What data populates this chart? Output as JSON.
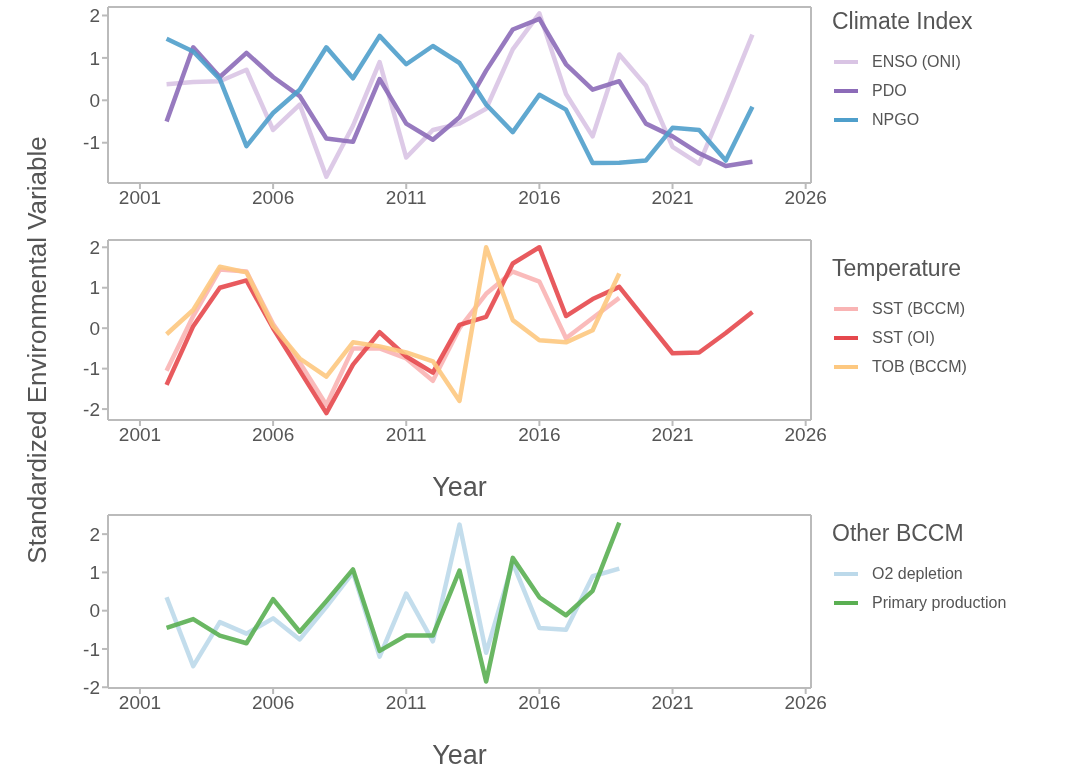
{
  "chart_data": [
    {
      "type": "line",
      "x": [
        2002,
        2003,
        2004,
        2005,
        2006,
        2007,
        2008,
        2009,
        2010,
        2011,
        2012,
        2013,
        2014,
        2015,
        2016,
        2017,
        2018,
        2019,
        2020,
        2021,
        2022,
        2023,
        2024
      ],
      "xlim": [
        1999.8,
        2026.2
      ],
      "xticks": [
        2001,
        2006,
        2011,
        2016,
        2021,
        2026
      ],
      "ylim": [
        -1.95,
        2.2
      ],
      "yticks": [
        -1,
        0,
        1,
        2
      ],
      "legend": "right",
      "legend_title": "Climate Index",
      "line_style": "solid",
      "marker": "none",
      "series": [
        {
          "name": "ENSO (ONI)",
          "color": "#d9c4e4",
          "values": [
            0.38,
            0.43,
            0.45,
            0.72,
            -0.7,
            -0.1,
            -1.8,
            -0.6,
            0.9,
            -1.35,
            -0.7,
            -0.55,
            -0.2,
            1.2,
            2.05,
            0.15,
            -0.85,
            1.08,
            0.35,
            -1.1,
            -1.5,
            0.0,
            1.55
          ]
        },
        {
          "name": "PDO",
          "color": "#8c6bb8",
          "values": [
            -0.5,
            1.25,
            0.55,
            1.12,
            0.55,
            0.1,
            -0.9,
            -0.98,
            0.5,
            -0.55,
            -0.93,
            -0.4,
            0.7,
            1.67,
            1.92,
            0.85,
            0.25,
            0.45,
            -0.55,
            -0.85,
            -1.25,
            -1.55,
            -1.45
          ]
        },
        {
          "name": "NPGO",
          "color": "#4f9fcb",
          "values": [
            1.45,
            1.15,
            0.5,
            -1.08,
            -0.3,
            0.25,
            1.25,
            0.52,
            1.52,
            0.85,
            1.28,
            0.88,
            -0.1,
            -0.75,
            0.13,
            -0.22,
            -1.48,
            -1.47,
            -1.42,
            -0.65,
            -0.7,
            -1.42,
            -0.15
          ]
        }
      ]
    },
    {
      "type": "line",
      "x": [
        2002,
        2003,
        2004,
        2005,
        2006,
        2007,
        2008,
        2009,
        2010,
        2011,
        2012,
        2013,
        2014,
        2015,
        2016,
        2017,
        2018,
        2019,
        2020,
        2021,
        2022,
        2023,
        2024
      ],
      "xlim": [
        1999.8,
        2026.2
      ],
      "xticks": [
        2001,
        2006,
        2011,
        2016,
        2021,
        2026
      ],
      "ylim": [
        -2.27,
        2.18
      ],
      "yticks": [
        -2,
        -1,
        0,
        1,
        2
      ],
      "xlabel": "Year",
      "ylabel": "Standardized Environmental Variable",
      "legend": "right",
      "legend_title": "Temperature",
      "line_style": "solid",
      "marker": "none",
      "series": [
        {
          "name": "SST (BCCM)",
          "color": "#f9b4b4",
          "x": [
            2002,
            2003,
            2004,
            2005,
            2006,
            2007,
            2008,
            2009,
            2010,
            2011,
            2012,
            2013,
            2014,
            2015,
            2016,
            2017,
            2018,
            2019
          ],
          "values": [
            -1.05,
            0.3,
            1.45,
            1.4,
            0.1,
            -0.85,
            -1.9,
            -0.5,
            -0.5,
            -0.75,
            -1.3,
            0.0,
            0.85,
            1.4,
            1.15,
            -0.25,
            0.25,
            0.75
          ]
        },
        {
          "name": "SST (OI)",
          "color": "#e5484d",
          "values": [
            -1.4,
            0.05,
            1.0,
            1.18,
            0.0,
            -1.05,
            -2.1,
            -0.9,
            -0.1,
            -0.7,
            -1.1,
            0.08,
            0.28,
            1.6,
            2.0,
            0.3,
            0.72,
            1.02,
            0.2,
            -0.62,
            -0.6,
            -0.12,
            0.4
          ]
        },
        {
          "name": "TOB (BCCM)",
          "color": "#fdc880",
          "x": [
            2002,
            2003,
            2004,
            2005,
            2006,
            2007,
            2008,
            2009,
            2010,
            2011,
            2012,
            2013,
            2014,
            2015,
            2016,
            2017,
            2018,
            2019
          ],
          "values": [
            -0.15,
            0.45,
            1.52,
            1.38,
            0.05,
            -0.75,
            -1.2,
            -0.35,
            -0.45,
            -0.6,
            -0.82,
            -1.8,
            2.0,
            0.2,
            -0.3,
            -0.35,
            -0.05,
            1.35
          ]
        }
      ]
    },
    {
      "type": "line",
      "x": [
        2002,
        2003,
        2004,
        2005,
        2006,
        2007,
        2008,
        2009,
        2010,
        2011,
        2012,
        2013,
        2014,
        2015,
        2016,
        2017,
        2018,
        2019
      ],
      "xlim": [
        1999.8,
        2026.2
      ],
      "xticks": [
        2001,
        2006,
        2011,
        2016,
        2021,
        2026
      ],
      "ylim": [
        -2.02,
        2.5
      ],
      "yticks": [
        -2,
        -1,
        0,
        1,
        2
      ],
      "xlabel": "Year",
      "legend": "right",
      "legend_title": "Other BCCM",
      "line_style": "solid",
      "marker": "none",
      "series": [
        {
          "name": "O2 depletion",
          "color": "#bcd9ea",
          "values": [
            0.35,
            -1.45,
            -0.3,
            -0.6,
            -0.2,
            -0.75,
            0.1,
            1.0,
            -1.2,
            0.45,
            -0.8,
            2.25,
            -1.1,
            1.25,
            -0.45,
            -0.5,
            0.9,
            1.1
          ]
        },
        {
          "name": "Primary production",
          "color": "#5aaf52",
          "values": [
            -0.45,
            -0.22,
            -0.65,
            -0.85,
            0.3,
            -0.55,
            0.25,
            1.08,
            -1.05,
            -0.65,
            -0.65,
            1.05,
            -1.85,
            1.38,
            0.35,
            -0.12,
            0.52,
            2.3
          ]
        }
      ]
    }
  ]
}
